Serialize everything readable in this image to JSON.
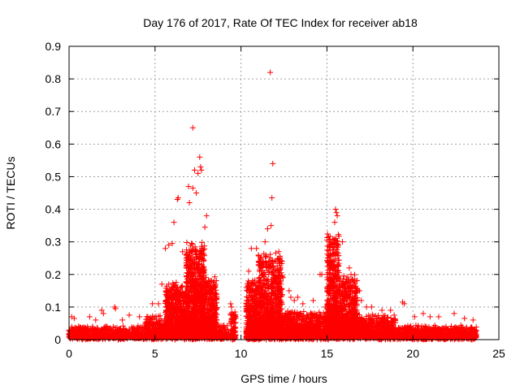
{
  "chart_data": {
    "type": "scatter",
    "title": "Day 176 of 2017, Rate Of TEC Index for receiver ab18",
    "xlabel": "GPS time / hours",
    "ylabel": "ROTI / TECUs",
    "xlim": [
      0,
      25
    ],
    "ylim": [
      0,
      0.9
    ],
    "xticks": [
      0,
      5,
      10,
      15,
      20,
      25
    ],
    "yticks": [
      0,
      0.1,
      0.2,
      0.3,
      0.4,
      0.5,
      0.6,
      0.7,
      0.8,
      0.9
    ],
    "grid": true,
    "legend": "none",
    "marker": "+",
    "color": "#ff0000",
    "outlier_points": [
      [
        11.7,
        0.82
      ],
      [
        7.2,
        0.65
      ],
      [
        11.85,
        0.54
      ],
      [
        7.6,
        0.56
      ],
      [
        7.65,
        0.53
      ],
      [
        7.7,
        0.52
      ],
      [
        7.5,
        0.51
      ],
      [
        7.3,
        0.52
      ],
      [
        6.95,
        0.47
      ],
      [
        7.2,
        0.465
      ],
      [
        11.8,
        0.435
      ],
      [
        6.3,
        0.43
      ],
      [
        6.35,
        0.435
      ],
      [
        7.0,
        0.42
      ],
      [
        7.4,
        0.45
      ],
      [
        15.5,
        0.4
      ],
      [
        15.55,
        0.39
      ],
      [
        15.6,
        0.38
      ],
      [
        8.0,
        0.38
      ],
      [
        6.1,
        0.36
      ],
      [
        15.45,
        0.36
      ],
      [
        11.55,
        0.34
      ],
      [
        11.75,
        0.35
      ],
      [
        7.9,
        0.345
      ],
      [
        15.9,
        0.3
      ],
      [
        11.4,
        0.3
      ],
      [
        5.6,
        0.28
      ],
      [
        5.8,
        0.29
      ],
      [
        6.0,
        0.295
      ],
      [
        10.6,
        0.28
      ],
      [
        10.9,
        0.28
      ],
      [
        12.2,
        0.27
      ],
      [
        6.6,
        0.27
      ],
      [
        16.3,
        0.22
      ],
      [
        16.4,
        0.2
      ],
      [
        14.6,
        0.2
      ],
      [
        14.7,
        0.2
      ],
      [
        16.6,
        0.18
      ],
      [
        10.45,
        0.21
      ],
      [
        10.5,
        0.16
      ],
      [
        12.45,
        0.19
      ],
      [
        12.3,
        0.22
      ],
      [
        5.4,
        0.17
      ],
      [
        5.2,
        0.11
      ],
      [
        4.85,
        0.11
      ],
      [
        9.4,
        0.11
      ],
      [
        9.45,
        0.1
      ],
      [
        19.4,
        0.115
      ],
      [
        19.5,
        0.11
      ],
      [
        22.4,
        0.08
      ],
      [
        21.5,
        0.07
      ],
      [
        1.9,
        0.09
      ],
      [
        2.0,
        0.08
      ],
      [
        2.65,
        0.1
      ],
      [
        2.7,
        0.095
      ],
      [
        3.5,
        0.075
      ],
      [
        0.15,
        0.07
      ],
      [
        0.3,
        0.065
      ],
      [
        1.2,
        0.07
      ],
      [
        1.55,
        0.06
      ],
      [
        3.1,
        0.06
      ],
      [
        4.1,
        0.07
      ],
      [
        13.3,
        0.13
      ],
      [
        13.6,
        0.11
      ],
      [
        14.2,
        0.12
      ],
      [
        14.9,
        0.1
      ],
      [
        17.3,
        0.1
      ],
      [
        17.6,
        0.1
      ],
      [
        18.2,
        0.09
      ],
      [
        18.7,
        0.09
      ],
      [
        20.1,
        0.07
      ],
      [
        21.0,
        0.07
      ],
      [
        23.0,
        0.065
      ],
      [
        23.5,
        0.06
      ],
      [
        20.6,
        0.08
      ],
      [
        16.9,
        0.15
      ],
      [
        17.0,
        0.12
      ],
      [
        12.8,
        0.15
      ],
      [
        12.9,
        0.13
      ],
      [
        13.1,
        0.12
      ]
    ],
    "density_segments": [
      {
        "x_range": [
          0.0,
          0.9
        ],
        "base": 0.02,
        "spread": 0.025,
        "count": 180
      },
      {
        "x_range": [
          0.9,
          4.4
        ],
        "base": 0.015,
        "spread": 0.03,
        "count": 520
      },
      {
        "x_range": [
          4.4,
          5.6
        ],
        "base": 0.02,
        "spread": 0.06,
        "count": 300
      },
      {
        "x_range": [
          5.6,
          6.8
        ],
        "base": 0.03,
        "spread": 0.15,
        "count": 700
      },
      {
        "x_range": [
          6.8,
          7.9
        ],
        "base": 0.04,
        "spread": 0.26,
        "count": 1100
      },
      {
        "x_range": [
          7.9,
          8.6
        ],
        "base": 0.03,
        "spread": 0.17,
        "count": 450
      },
      {
        "x_range": [
          8.6,
          9.3
        ],
        "base": 0.015,
        "spread": 0.04,
        "count": 90
      },
      {
        "x_range": [
          9.4,
          9.7
        ],
        "base": 0.01,
        "spread": 0.08,
        "count": 80
      },
      {
        "x_range": [
          10.3,
          11.0
        ],
        "base": 0.02,
        "spread": 0.17,
        "count": 500
      },
      {
        "x_range": [
          11.0,
          12.4
        ],
        "base": 0.03,
        "spread": 0.24,
        "count": 1000
      },
      {
        "x_range": [
          12.4,
          15.0
        ],
        "base": 0.02,
        "spread": 0.07,
        "count": 900
      },
      {
        "x_range": [
          15.0,
          15.7
        ],
        "base": 0.03,
        "spread": 0.3,
        "count": 700
      },
      {
        "x_range": [
          15.7,
          16.8
        ],
        "base": 0.03,
        "spread": 0.17,
        "count": 700
      },
      {
        "x_range": [
          16.8,
          19.0
        ],
        "base": 0.02,
        "spread": 0.06,
        "count": 600
      },
      {
        "x_range": [
          19.0,
          23.7
        ],
        "base": 0.015,
        "spread": 0.03,
        "count": 900
      }
    ]
  }
}
